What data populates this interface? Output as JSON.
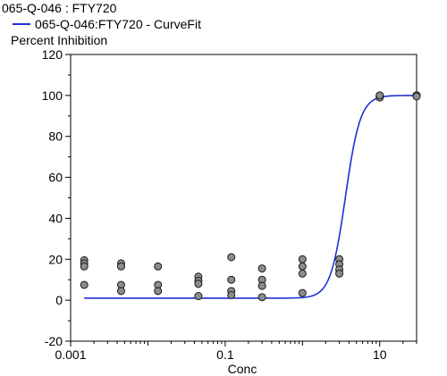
{
  "chart_data": {
    "type": "scatter",
    "title": "065-Q-046  : FTY720",
    "legend": [
      {
        "label": "065-Q-046:FTY720 - CurveFit",
        "color": "#1f2fd8",
        "marker": "line"
      }
    ],
    "ylabel": "Percent Inhibition",
    "xlabel": "Conc",
    "x_scale": "log",
    "xlim": [
      0.001,
      30
    ],
    "ylim": [
      -20,
      120
    ],
    "x_ticks": [
      0.001,
      0.1,
      10
    ],
    "x_tick_labels": [
      "0.001",
      "0.1",
      "10"
    ],
    "y_ticks": [
      -20,
      0,
      20,
      40,
      60,
      80,
      100,
      120
    ],
    "y_tick_labels": [
      "-20",
      "0",
      "20",
      "40",
      "60",
      "80",
      "100",
      "120"
    ],
    "colors": {
      "points": "#8c8c8c",
      "point_stroke": "#1a1a1a",
      "curve": "#1f2fd8"
    },
    "series": [
      {
        "name": "065-Q-046:FTY720",
        "type": "scatter",
        "points": [
          [
            0.0015,
            19.5
          ],
          [
            0.0015,
            18
          ],
          [
            0.0015,
            16.5
          ],
          [
            0.0015,
            7.5
          ],
          [
            0.0045,
            18
          ],
          [
            0.0045,
            16.5
          ],
          [
            0.0045,
            7.5
          ],
          [
            0.0045,
            4.5
          ],
          [
            0.0135,
            16.5
          ],
          [
            0.0135,
            7.5
          ],
          [
            0.0135,
            4.5
          ],
          [
            0.045,
            11.5
          ],
          [
            0.045,
            9.5
          ],
          [
            0.045,
            8
          ],
          [
            0.045,
            2
          ],
          [
            0.12,
            21
          ],
          [
            0.12,
            10
          ],
          [
            0.12,
            4.5
          ],
          [
            0.12,
            2.5
          ],
          [
            0.3,
            15.5
          ],
          [
            0.3,
            10
          ],
          [
            0.3,
            7
          ],
          [
            0.3,
            1.5
          ],
          [
            1.0,
            20
          ],
          [
            1.0,
            16.5
          ],
          [
            1.0,
            13
          ],
          [
            1.0,
            3.5
          ],
          [
            3.0,
            20
          ],
          [
            3.0,
            17.5
          ],
          [
            3.0,
            15
          ],
          [
            3.0,
            13
          ],
          [
            10,
            100
          ],
          [
            10,
            99.5
          ],
          [
            10,
            99
          ],
          [
            10,
            100
          ],
          [
            30,
            100
          ],
          [
            30,
            100
          ],
          [
            30,
            99.5
          ]
        ]
      },
      {
        "name": "065-Q-046:FTY720 - CurveFit",
        "type": "curve",
        "model": "4PL",
        "bottom": 1,
        "top": 100,
        "ec50": 3.6,
        "hill": 4.5,
        "x_range": [
          0.0015,
          30
        ]
      }
    ]
  }
}
